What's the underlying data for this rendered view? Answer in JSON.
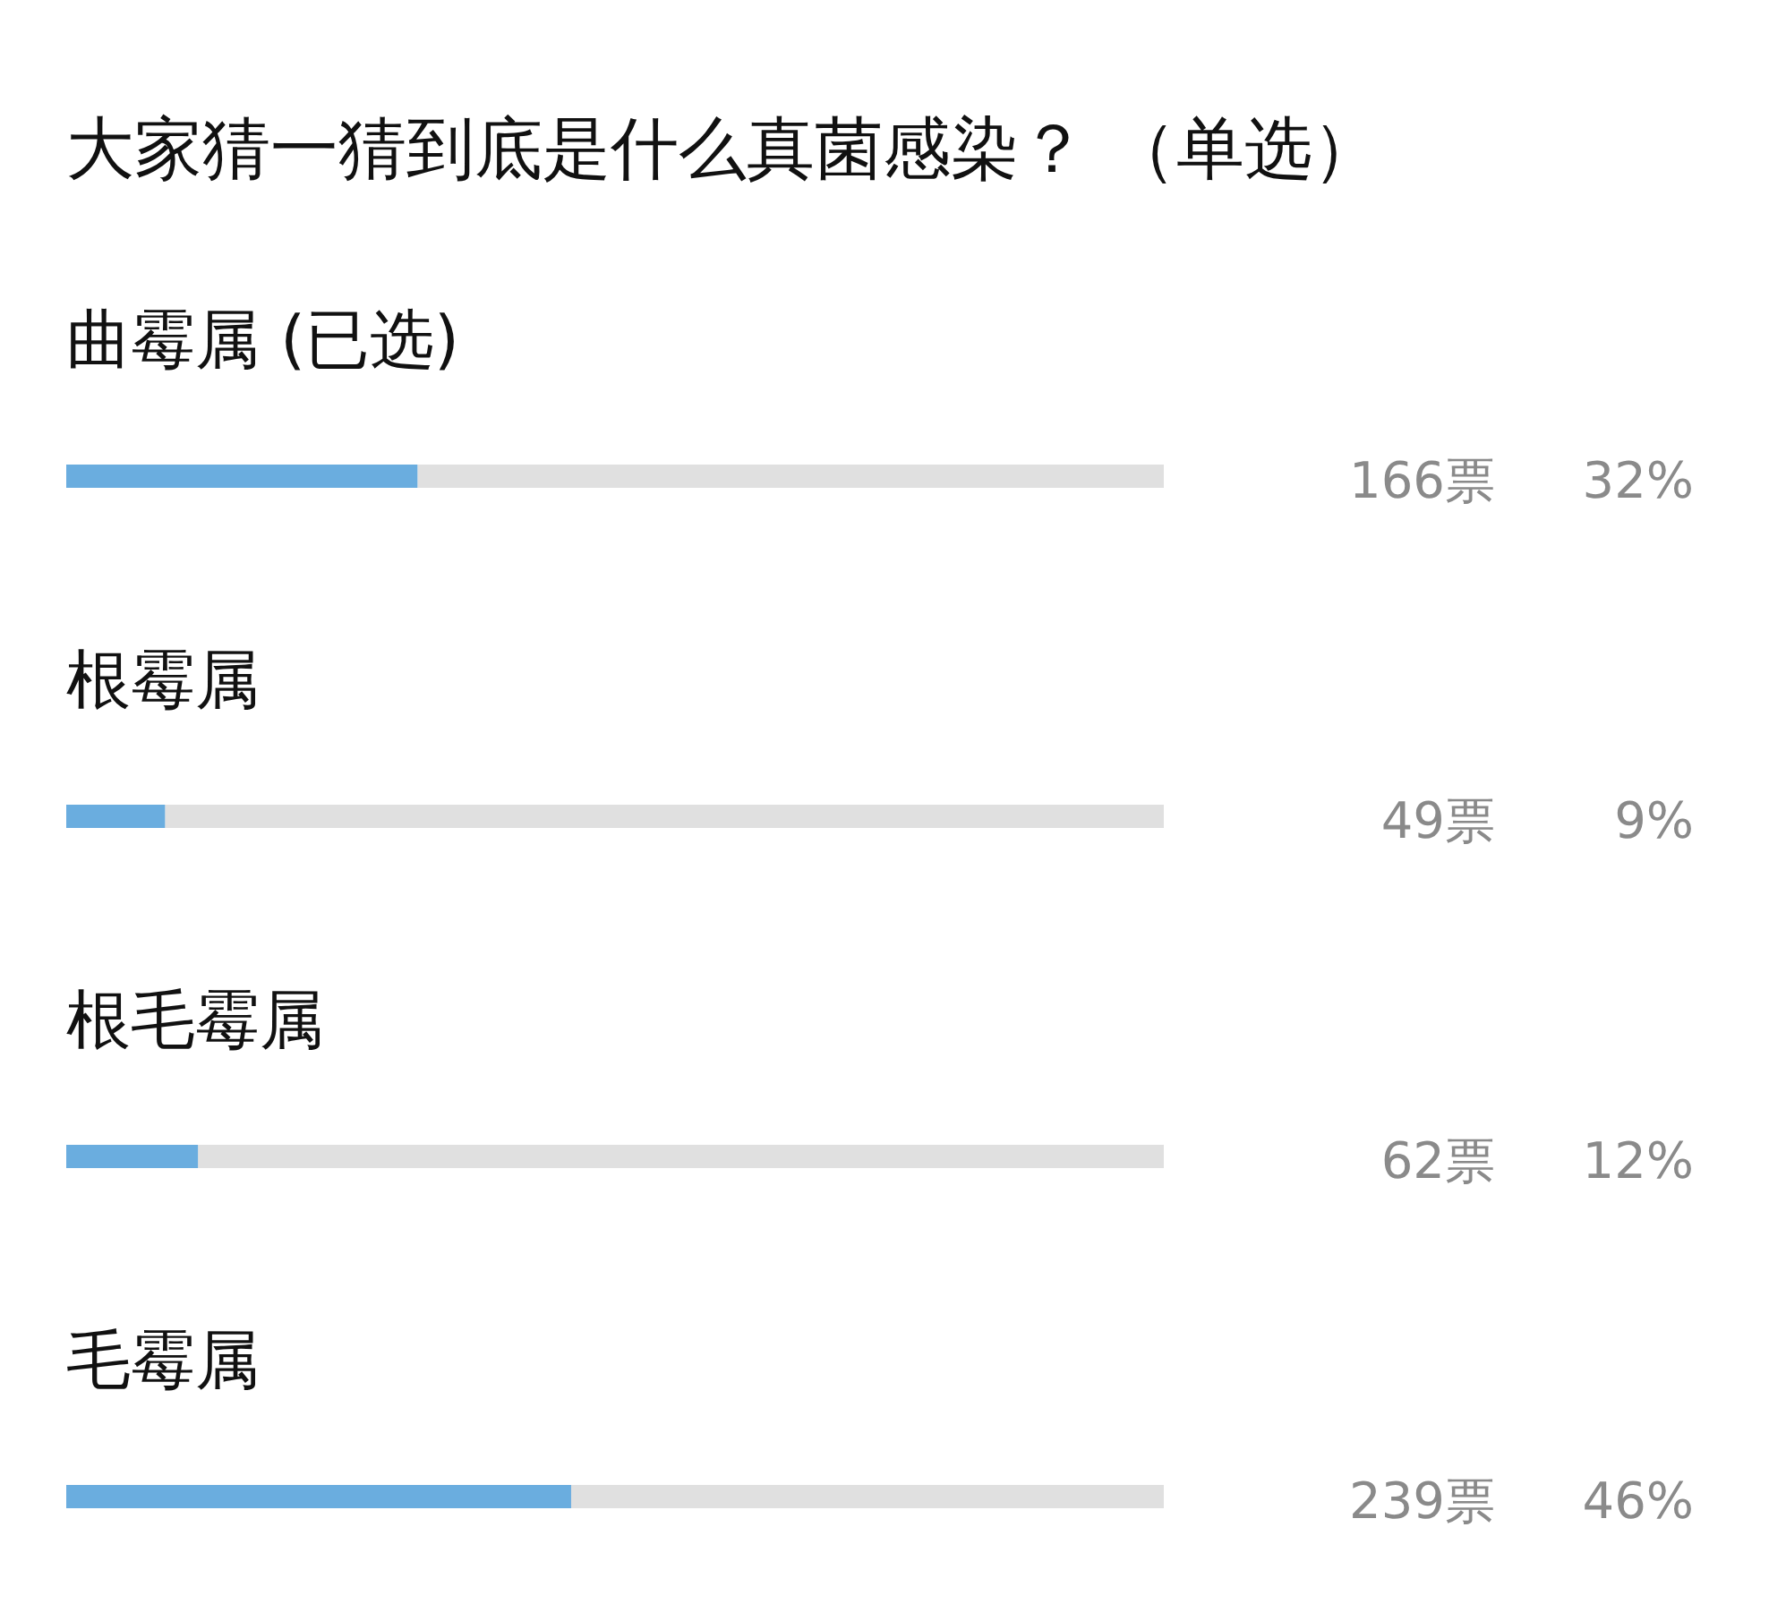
{
  "chart_data": {
    "type": "bar",
    "orientation": "horizontal",
    "title": "大家猜一猜到底是什么真菌感染？ （单选）",
    "categories": [
      "曲霉属 (已选)",
      "根霉属",
      "根毛霉属",
      "毛霉属"
    ],
    "values": [
      32,
      9,
      12,
      46
    ],
    "color": "#6aaddf",
    "xlim": [
      0,
      100
    ],
    "value_labels": [
      "32%",
      "9%",
      "12%",
      "46%"
    ],
    "annotations": [
      "166票",
      "49票",
      "62票",
      "239票"
    ]
  }
}
